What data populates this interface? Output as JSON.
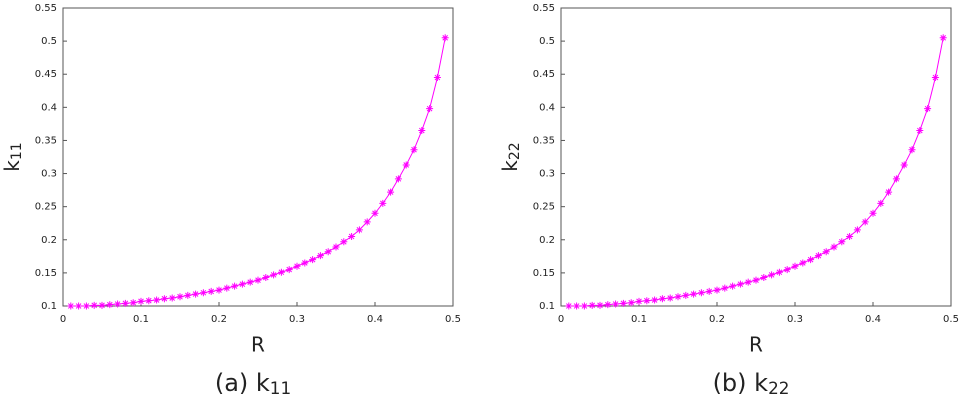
{
  "chart_data": [
    {
      "type": "line",
      "xlabel": "R",
      "ylabel": {
        "text": "k",
        "sub": "11"
      },
      "caption": {
        "text": "(a) k",
        "sub": "11"
      },
      "x": [
        0.01,
        0.02,
        0.03,
        0.04,
        0.05,
        0.06,
        0.07,
        0.08,
        0.09,
        0.1,
        0.11,
        0.12,
        0.13,
        0.14,
        0.15,
        0.16,
        0.17,
        0.18,
        0.19,
        0.2,
        0.21,
        0.22,
        0.23,
        0.24,
        0.25,
        0.26,
        0.27,
        0.28,
        0.29,
        0.3,
        0.31,
        0.32,
        0.33,
        0.34,
        0.35,
        0.36,
        0.37,
        0.38,
        0.39,
        0.4,
        0.41,
        0.42,
        0.43,
        0.44,
        0.45,
        0.46,
        0.47,
        0.48,
        0.49
      ],
      "series": [
        {
          "color": "#ff00ff",
          "values": [
            0.1,
            0.1,
            0.1,
            0.101,
            0.101,
            0.102,
            0.103,
            0.104,
            0.105,
            0.107,
            0.108,
            0.109,
            0.111,
            0.112,
            0.114,
            0.116,
            0.118,
            0.12,
            0.122,
            0.124,
            0.127,
            0.13,
            0.133,
            0.136,
            0.139,
            0.143,
            0.147,
            0.151,
            0.155,
            0.16,
            0.165,
            0.17,
            0.176,
            0.182,
            0.189,
            0.197,
            0.205,
            0.215,
            0.227,
            0.24,
            0.255,
            0.272,
            0.292,
            0.313,
            0.336,
            0.365,
            0.398,
            0.445,
            0.505
          ]
        }
      ],
      "xlim": [
        0,
        0.5
      ],
      "xticks": [
        0,
        0.1,
        0.2,
        0.3,
        0.4,
        0.5
      ],
      "ylim": [
        0.1,
        0.55
      ],
      "yticks": [
        0.1,
        0.15,
        0.2,
        0.25,
        0.3,
        0.35,
        0.4,
        0.45,
        0.5,
        0.55
      ]
    },
    {
      "type": "line",
      "xlabel": "R",
      "ylabel": {
        "text": "k",
        "sub": "22"
      },
      "caption": {
        "text": "(b) k",
        "sub": "22"
      },
      "x": [
        0.01,
        0.02,
        0.03,
        0.04,
        0.05,
        0.06,
        0.07,
        0.08,
        0.09,
        0.1,
        0.11,
        0.12,
        0.13,
        0.14,
        0.15,
        0.16,
        0.17,
        0.18,
        0.19,
        0.2,
        0.21,
        0.22,
        0.23,
        0.24,
        0.25,
        0.26,
        0.27,
        0.28,
        0.29,
        0.3,
        0.31,
        0.32,
        0.33,
        0.34,
        0.35,
        0.36,
        0.37,
        0.38,
        0.39,
        0.4,
        0.41,
        0.42,
        0.43,
        0.44,
        0.45,
        0.46,
        0.47,
        0.48,
        0.49
      ],
      "series": [
        {
          "color": "#ff00ff",
          "values": [
            0.1,
            0.1,
            0.1,
            0.101,
            0.101,
            0.102,
            0.103,
            0.104,
            0.105,
            0.107,
            0.108,
            0.109,
            0.111,
            0.112,
            0.114,
            0.116,
            0.118,
            0.12,
            0.122,
            0.124,
            0.127,
            0.13,
            0.133,
            0.136,
            0.139,
            0.143,
            0.147,
            0.151,
            0.155,
            0.16,
            0.165,
            0.17,
            0.176,
            0.182,
            0.189,
            0.197,
            0.205,
            0.215,
            0.227,
            0.24,
            0.255,
            0.272,
            0.292,
            0.313,
            0.336,
            0.365,
            0.398,
            0.445,
            0.505
          ]
        }
      ],
      "xlim": [
        0,
        0.5
      ],
      "xticks": [
        0,
        0.1,
        0.2,
        0.3,
        0.4,
        0.5
      ],
      "ylim": [
        0.1,
        0.55
      ],
      "yticks": [
        0.1,
        0.15,
        0.2,
        0.25,
        0.3,
        0.35,
        0.4,
        0.45,
        0.5,
        0.55
      ]
    }
  ]
}
